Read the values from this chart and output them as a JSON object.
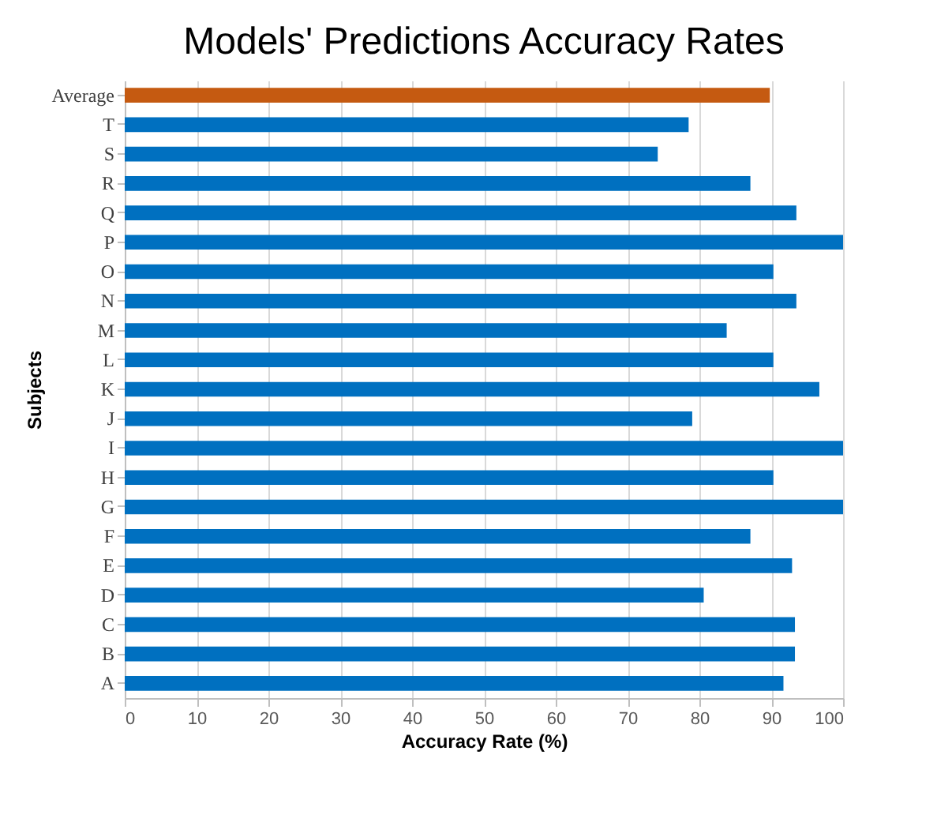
{
  "chart_data": {
    "type": "bar",
    "orientation": "horizontal",
    "title": "Models' Predictions Accuracy Rates",
    "xlabel": "Accuracy Rate (%)",
    "ylabel": "Subjects",
    "categories": [
      "Average",
      "T",
      "S",
      "R",
      "Q",
      "P",
      "O",
      "N",
      "M",
      "L",
      "K",
      "J",
      "I",
      "H",
      "G",
      "F",
      "E",
      "D",
      "C",
      "B",
      "A"
    ],
    "values": [
      89.8,
      78.5,
      74.2,
      87.1,
      93.5,
      100,
      90.3,
      93.5,
      83.8,
      90.3,
      96.7,
      79.0,
      100,
      90.3,
      100,
      87.1,
      92.9,
      80.6,
      93.3,
      93.3,
      91.7
    ],
    "colors": [
      "#c55a11",
      "#0070c0",
      "#0070c0",
      "#0070c0",
      "#0070c0",
      "#0070c0",
      "#0070c0",
      "#0070c0",
      "#0070c0",
      "#0070c0",
      "#0070c0",
      "#0070c0",
      "#0070c0",
      "#0070c0",
      "#0070c0",
      "#0070c0",
      "#0070c0",
      "#0070c0",
      "#0070c0",
      "#0070c0",
      "#0070c0"
    ],
    "xlim": [
      0,
      100
    ],
    "xticks": [
      0,
      10,
      20,
      30,
      40,
      50,
      60,
      70,
      80,
      90,
      100
    ],
    "grid": "x"
  }
}
